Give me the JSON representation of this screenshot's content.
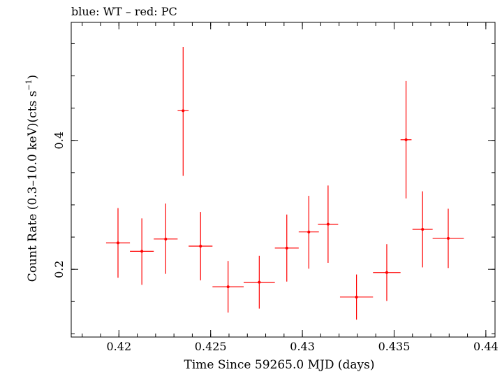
{
  "chart_data": {
    "type": "scatter",
    "title": "blue: WT – red: PC",
    "xlabel": "Time Since 59265.0 MJD (days)",
    "ylabel_main": "Count Rate (0.3–10.0 keV)(cts s",
    "ylabel_sup": "−1",
    "ylabel_close": ")",
    "xlim": [
      0.4174,
      0.4405
    ],
    "ylim": [
      0.095,
      0.583
    ],
    "xticks": [
      {
        "value": 0.42,
        "label": "0.42"
      },
      {
        "value": 0.425,
        "label": "0.425"
      },
      {
        "value": 0.43,
        "label": "0.43"
      },
      {
        "value": 0.435,
        "label": "0.435"
      },
      {
        "value": 0.44,
        "label": "0.44"
      }
    ],
    "x_minor_step": 0.001,
    "yticks": [
      {
        "value": 0.2,
        "label": "0.2"
      },
      {
        "value": 0.4,
        "label": "0.4"
      }
    ],
    "y_minor_step": 0.05,
    "grid": false,
    "series": [
      {
        "color": "#ff0000",
        "points": [
          {
            "x": 0.41995,
            "xerr": 0.00065,
            "y": 0.241,
            "ylo": 0.187,
            "yhi": 0.295
          },
          {
            "x": 0.42125,
            "xerr": 0.00065,
            "y": 0.228,
            "ylo": 0.176,
            "yhi": 0.279
          },
          {
            "x": 0.42255,
            "xerr": 0.00065,
            "y": 0.247,
            "ylo": 0.193,
            "yhi": 0.302
          },
          {
            "x": 0.4235,
            "xerr": 0.0003,
            "y": 0.446,
            "ylo": 0.345,
            "yhi": 0.545
          },
          {
            "x": 0.42445,
            "xerr": 0.00065,
            "y": 0.236,
            "ylo": 0.183,
            "yhi": 0.289
          },
          {
            "x": 0.42595,
            "xerr": 0.00085,
            "y": 0.173,
            "ylo": 0.133,
            "yhi": 0.213
          },
          {
            "x": 0.42765,
            "xerr": 0.00085,
            "y": 0.18,
            "ylo": 0.139,
            "yhi": 0.221
          },
          {
            "x": 0.42915,
            "xerr": 0.00065,
            "y": 0.233,
            "ylo": 0.181,
            "yhi": 0.285
          },
          {
            "x": 0.43035,
            "xerr": 0.00055,
            "y": 0.258,
            "ylo": 0.201,
            "yhi": 0.314
          },
          {
            "x": 0.4314,
            "xerr": 0.00055,
            "y": 0.27,
            "ylo": 0.21,
            "yhi": 0.33
          },
          {
            "x": 0.43295,
            "xerr": 0.0009,
            "y": 0.157,
            "ylo": 0.122,
            "yhi": 0.192
          },
          {
            "x": 0.4346,
            "xerr": 0.00075,
            "y": 0.195,
            "ylo": 0.151,
            "yhi": 0.239
          },
          {
            "x": 0.43565,
            "xerr": 0.0003,
            "y": 0.401,
            "ylo": 0.31,
            "yhi": 0.492
          },
          {
            "x": 0.43655,
            "xerr": 0.00055,
            "y": 0.262,
            "ylo": 0.203,
            "yhi": 0.321
          },
          {
            "x": 0.43795,
            "xerr": 0.00085,
            "y": 0.248,
            "ylo": 0.202,
            "yhi": 0.294
          }
        ]
      }
    ]
  }
}
